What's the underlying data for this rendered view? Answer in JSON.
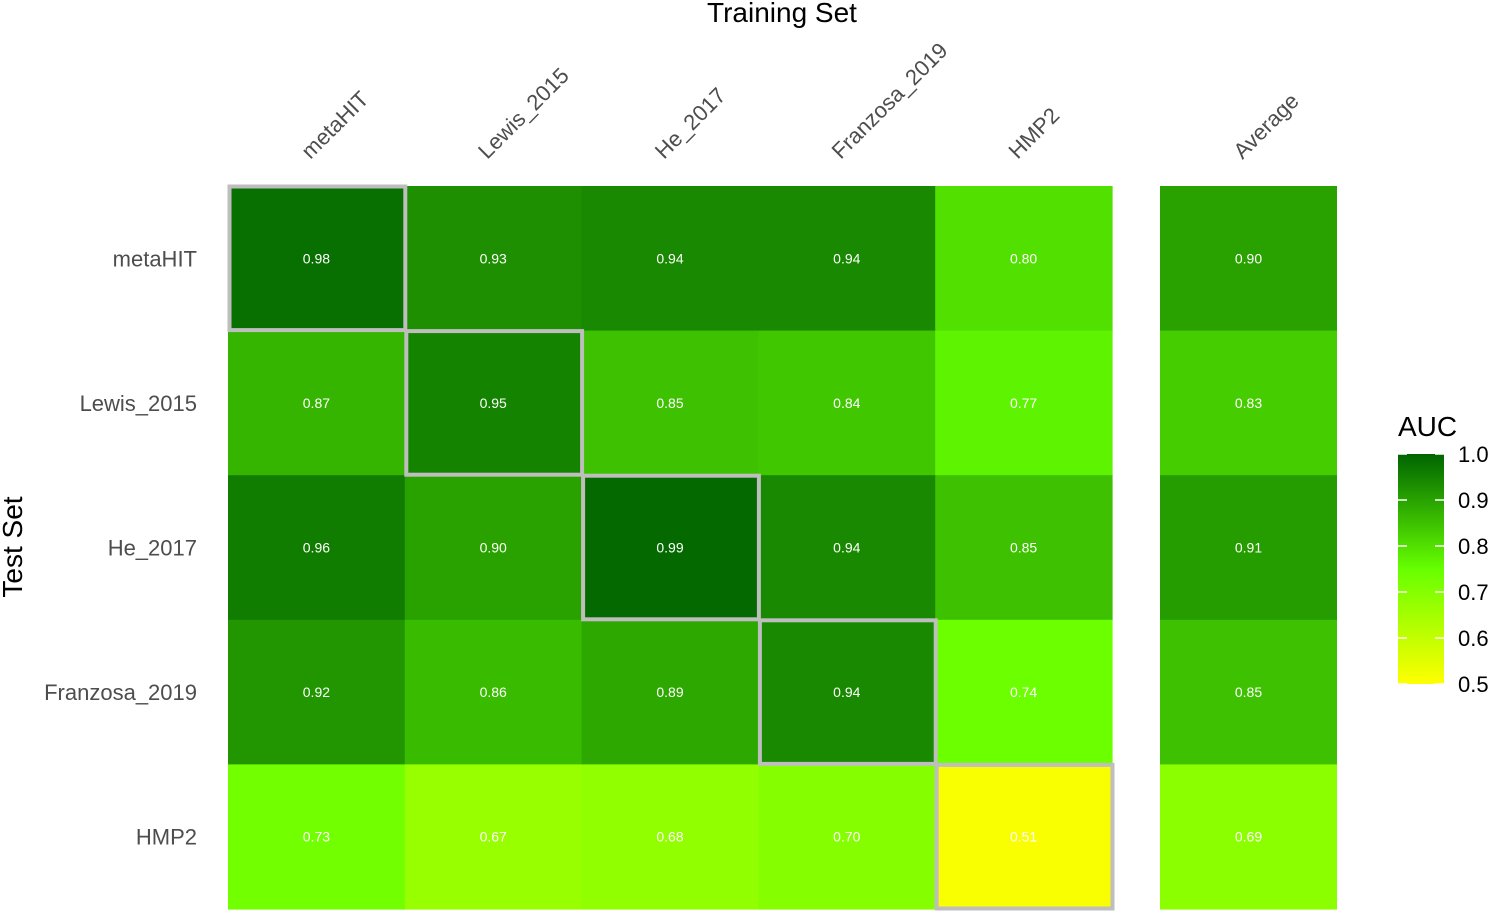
{
  "chart_data": {
    "type": "heatmap",
    "title": "Training Set",
    "xlabel": "Training Set",
    "ylabel": "Test Set",
    "columns": [
      "metaHIT",
      "Lewis_2015",
      "He_2017",
      "Franzosa_2019",
      "HMP2"
    ],
    "average_column": "Average",
    "rows": [
      "metaHIT",
      "Lewis_2015",
      "He_2017",
      "Franzosa_2019",
      "HMP2"
    ],
    "values": [
      [
        0.98,
        0.93,
        0.94,
        0.94,
        0.8
      ],
      [
        0.87,
        0.95,
        0.85,
        0.84,
        0.77
      ],
      [
        0.96,
        0.9,
        0.99,
        0.94,
        0.85
      ],
      [
        0.92,
        0.86,
        0.89,
        0.94,
        0.74
      ],
      [
        0.73,
        0.67,
        0.68,
        0.7,
        0.51
      ]
    ],
    "averages": [
      0.9,
      0.83,
      0.91,
      0.85,
      0.69
    ],
    "labels": [
      [
        "0.98",
        "0.93",
        "0.94",
        "0.94",
        "0.80"
      ],
      [
        "0.87",
        "0.95",
        "0.85",
        "0.84",
        "0.77"
      ],
      [
        "0.96",
        "0.90",
        "0.99",
        "0.94",
        "0.85"
      ],
      [
        "0.92",
        "0.86",
        "0.89",
        "0.94",
        "0.74"
      ],
      [
        "0.73",
        "0.67",
        "0.68",
        "0.70",
        "0.51"
      ]
    ],
    "average_labels": [
      "0.90",
      "0.83",
      "0.91",
      "0.85",
      "0.69"
    ],
    "highlight": "diagonal",
    "legend": {
      "title": "AUC",
      "position": "right",
      "range": [
        0.5,
        1.0
      ],
      "ticks": [
        0.5,
        0.6,
        0.7,
        0.8,
        0.9,
        1.0
      ],
      "tick_labels": [
        "0.5",
        "0.6",
        "0.7",
        "0.8",
        "0.9",
        "1.0"
      ]
    },
    "colors": {
      "low": "#ffff00",
      "mid": "#66ff00",
      "high": "#006400",
      "highlight_border": "#bebebe"
    }
  }
}
